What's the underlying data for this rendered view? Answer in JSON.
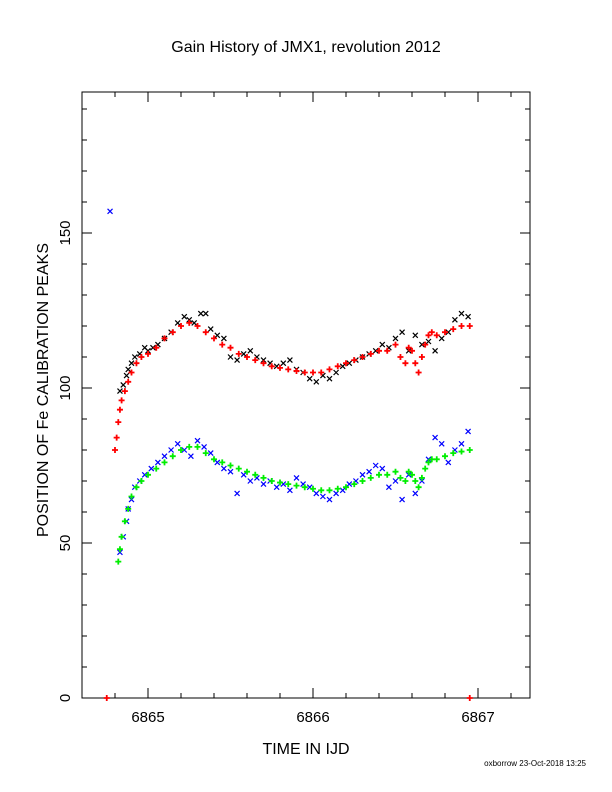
{
  "chart_data": {
    "type": "scatter",
    "title": "Gain History of JMX1, revolution 2012",
    "xlabel": "TIME IN IJD",
    "ylabel": "POSITION OF Fe CALIBRATION PEAKS",
    "xlim": [
      6864.6,
      6867.3
    ],
    "ylim": [
      0,
      195
    ],
    "x_ticks": [
      "6865",
      "6866",
      "6867"
    ],
    "x_tick_values": [
      6865,
      6866,
      6867
    ],
    "y_ticks": [
      "0",
      "50",
      "100",
      "150"
    ],
    "y_tick_values": [
      0,
      50,
      100,
      150
    ],
    "grid": false,
    "legend": "none",
    "footer": "oxborrow 23-Oct-2018 13:25",
    "series": [
      {
        "role": "upper-peak-measurements",
        "marker": "x",
        "color": "#000000",
        "x": [
          6864.83,
          6864.85,
          6864.87,
          6864.88,
          6864.9,
          6864.92,
          6864.95,
          6864.98,
          6865.0,
          6865.03,
          6865.06,
          6865.1,
          6865.14,
          6865.18,
          6865.22,
          6865.25,
          6865.28,
          6865.32,
          6865.35,
          6865.38,
          6865.42,
          6865.46,
          6865.5,
          6865.54,
          6865.58,
          6865.62,
          6865.66,
          6865.7,
          6865.74,
          6865.78,
          6865.82,
          6865.86,
          6865.9,
          6865.94,
          6865.98,
          6866.02,
          6866.06,
          6866.1,
          6866.14,
          6866.18,
          6866.22,
          6866.26,
          6866.3,
          6866.34,
          6866.38,
          6866.42,
          6866.46,
          6866.5,
          6866.54,
          6866.58,
          6866.62,
          6866.66,
          6866.7,
          6866.74,
          6866.78,
          6866.82,
          6866.86,
          6866.9,
          6866.94
        ],
        "y": [
          99,
          101,
          104,
          106,
          108,
          110,
          111,
          113,
          112,
          113,
          114,
          116,
          118,
          121,
          123,
          122,
          121,
          124,
          124,
          119,
          117,
          116,
          110,
          109,
          111,
          112,
          110,
          109,
          108,
          107,
          108,
          109,
          106,
          105,
          103,
          102,
          104,
          103,
          105,
          107,
          108,
          109,
          110,
          111,
          112,
          114,
          113,
          116,
          118,
          112,
          117,
          114,
          115,
          112,
          116,
          118,
          122,
          124,
          123
        ]
      },
      {
        "role": "upper-peak-fit",
        "marker": "+",
        "color": "#ff0000",
        "x": [
          6864.8,
          6864.81,
          6864.82,
          6864.83,
          6864.84,
          6864.86,
          6864.88,
          6864.9,
          6864.93,
          6864.96,
          6865.0,
          6865.05,
          6865.1,
          6865.15,
          6865.2,
          6865.25,
          6865.3,
          6865.35,
          6865.4,
          6865.45,
          6865.5,
          6865.55,
          6865.6,
          6865.65,
          6865.7,
          6865.75,
          6865.8,
          6865.85,
          6865.9,
          6865.95,
          6866.0,
          6866.05,
          6866.1,
          6866.15,
          6866.2,
          6866.25,
          6866.3,
          6866.35,
          6866.4,
          6866.45,
          6866.5,
          6866.53,
          6866.56,
          6866.58,
          6866.6,
          6866.62,
          6866.64,
          6866.66,
          6866.68,
          6866.7,
          6866.72,
          6866.75,
          6866.8,
          6866.85,
          6866.9,
          6866.95
        ],
        "y": [
          80,
          84,
          89,
          93,
          96,
          99,
          102,
          105,
          108,
          110,
          111,
          113,
          116,
          118,
          120,
          121,
          120,
          118,
          116,
          114,
          113,
          111,
          110,
          109,
          108,
          107,
          106.5,
          106,
          105.5,
          105,
          105,
          105,
          106,
          107,
          108,
          109,
          110,
          111,
          112,
          112,
          114,
          110,
          108,
          113,
          112,
          108,
          105,
          110,
          114,
          117,
          118,
          117,
          118,
          119,
          120,
          120
        ]
      },
      {
        "role": "lower-peak-measurements",
        "marker": "x",
        "color": "#0000ff",
        "x": [
          6864.77,
          6864.83,
          6864.85,
          6864.87,
          6864.88,
          6864.9,
          6864.92,
          6864.95,
          6864.98,
          6865.02,
          6865.06,
          6865.1,
          6865.14,
          6865.18,
          6865.22,
          6865.26,
          6865.3,
          6865.34,
          6865.38,
          6865.42,
          6865.46,
          6865.5,
          6865.54,
          6865.58,
          6865.62,
          6865.66,
          6865.7,
          6865.74,
          6865.78,
          6865.82,
          6865.86,
          6865.9,
          6865.94,
          6865.98,
          6866.02,
          6866.06,
          6866.1,
          6866.14,
          6866.18,
          6866.22,
          6866.26,
          6866.3,
          6866.34,
          6866.38,
          6866.42,
          6866.46,
          6866.5,
          6866.54,
          6866.58,
          6866.62,
          6866.66,
          6866.7,
          6866.74,
          6866.78,
          6866.82,
          6866.86,
          6866.9,
          6866.94
        ],
        "y": [
          157,
          47,
          52,
          57,
          61,
          64,
          68,
          70,
          72,
          74,
          76,
          78,
          80,
          82,
          80,
          78,
          83,
          81,
          79,
          76,
          74,
          73,
          66,
          72,
          70,
          71,
          69,
          70,
          68,
          69,
          67,
          71,
          69,
          68,
          66,
          65,
          64,
          66,
          67,
          69,
          70,
          72,
          73,
          75,
          74,
          68,
          70,
          64,
          72,
          66,
          70,
          77,
          84,
          82,
          76,
          80,
          82,
          86
        ]
      },
      {
        "role": "lower-peak-fit",
        "marker": "+",
        "color": "#00ee00",
        "x": [
          6864.82,
          6864.83,
          6864.84,
          6864.86,
          6864.88,
          6864.9,
          6864.93,
          6864.96,
          6865.0,
          6865.05,
          6865.1,
          6865.15,
          6865.2,
          6865.25,
          6865.3,
          6865.35,
          6865.4,
          6865.45,
          6865.5,
          6865.55,
          6865.6,
          6865.65,
          6865.7,
          6865.75,
          6865.8,
          6865.85,
          6865.9,
          6865.95,
          6866.0,
          6866.05,
          6866.1,
          6866.15,
          6866.2,
          6866.25,
          6866.3,
          6866.35,
          6866.4,
          6866.45,
          6866.5,
          6866.53,
          6866.56,
          6866.58,
          6866.6,
          6866.62,
          6866.64,
          6866.66,
          6866.68,
          6866.7,
          6866.72,
          6866.75,
          6866.8,
          6866.85,
          6866.9,
          6866.95
        ],
        "y": [
          44,
          48,
          52,
          57,
          61,
          65,
          68,
          70,
          72,
          74,
          76,
          78,
          80,
          81,
          81,
          79,
          77,
          76,
          75,
          74,
          73,
          72,
          71,
          70,
          69.5,
          69,
          68.5,
          68,
          67.5,
          67,
          67,
          67.5,
          68,
          69,
          70,
          71,
          72,
          72,
          73,
          71,
          70,
          73,
          72,
          70,
          68,
          71,
          74,
          76,
          77,
          77,
          78,
          79,
          79.5,
          80
        ]
      },
      {
        "role": "baseline-markers",
        "marker": "+",
        "color": "#ff0000",
        "x": [
          6864.75,
          6866.95
        ],
        "y": [
          0,
          0
        ]
      }
    ]
  }
}
